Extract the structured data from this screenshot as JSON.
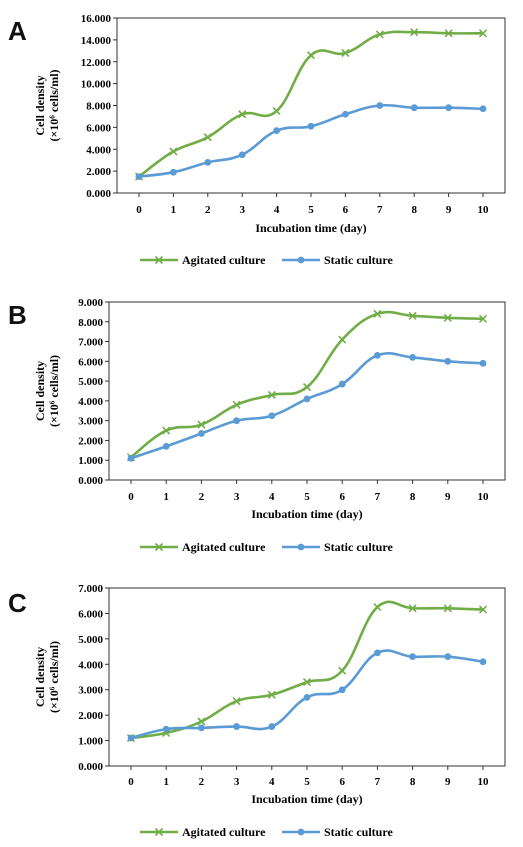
{
  "chart_data": [
    {
      "type": "line",
      "panel_label": "A",
      "x": [
        0,
        1,
        2,
        3,
        4,
        5,
        6,
        7,
        8,
        9,
        10
      ],
      "xticks": [
        "0",
        "1",
        "2",
        "3",
        "4",
        "5",
        "6",
        "7",
        "8",
        "9",
        "10"
      ],
      "xlabel": "Incubation time (day)",
      "ylabel_line1": "Cell density",
      "ylabel_line2": "(×10⁶ cells/ml)",
      "ylim": [
        0,
        16
      ],
      "yticks": [
        "0.000",
        "2.000",
        "4.000",
        "6.000",
        "8.000",
        "10.000",
        "12.000",
        "14.000",
        "16.000"
      ],
      "series": [
        {
          "name": "Agitated culture",
          "color": "#70ad47",
          "marker": "x",
          "values": [
            1.5,
            3.8,
            5.1,
            7.2,
            7.5,
            12.6,
            12.8,
            14.5,
            14.7,
            14.6,
            14.6
          ]
        },
        {
          "name": "Static culture",
          "color": "#5b9bd5",
          "marker": "circle",
          "values": [
            1.5,
            1.9,
            2.8,
            3.5,
            5.7,
            6.1,
            7.2,
            8.0,
            7.8,
            7.8,
            7.7
          ]
        }
      ],
      "legend_position": "bottom"
    },
    {
      "type": "line",
      "panel_label": "B",
      "x": [
        0,
        1,
        2,
        3,
        4,
        5,
        6,
        7,
        8,
        9,
        10
      ],
      "xticks": [
        "0",
        "1",
        "2",
        "3",
        "4",
        "5",
        "6",
        "7",
        "8",
        "9",
        "10"
      ],
      "xlabel": "Incubation time (day)",
      "ylabel_line1": "Cell density",
      "ylabel_line2": "(×10⁶ cells/ml)",
      "ylim": [
        0,
        9
      ],
      "yticks": [
        "0.000",
        "1.000",
        "2.000",
        "3.000",
        "4.000",
        "5.000",
        "6.000",
        "7.000",
        "8.000",
        "9.000"
      ],
      "series": [
        {
          "name": "Agitated culture",
          "color": "#70ad47",
          "marker": "x",
          "values": [
            1.15,
            2.5,
            2.8,
            3.8,
            4.3,
            4.7,
            7.1,
            8.4,
            8.3,
            8.2,
            8.15
          ]
        },
        {
          "name": "Static culture",
          "color": "#5b9bd5",
          "marker": "circle",
          "values": [
            1.1,
            1.7,
            2.35,
            3.0,
            3.25,
            4.1,
            4.85,
            6.3,
            6.2,
            6.0,
            5.9
          ]
        }
      ],
      "legend_position": "bottom"
    },
    {
      "type": "line",
      "panel_label": "C",
      "x": [
        0,
        1,
        2,
        3,
        4,
        5,
        6,
        7,
        8,
        9,
        10
      ],
      "xticks": [
        "0",
        "1",
        "2",
        "3",
        "4",
        "5",
        "6",
        "7",
        "8",
        "9",
        "10"
      ],
      "xlabel": "Incubation time (day)",
      "ylabel_line1": "Cell density",
      "ylabel_line2": "(×10⁶ cells/ml)",
      "ylim": [
        0,
        7
      ],
      "yticks": [
        "0.000",
        "1.000",
        "2.000",
        "3.000",
        "4.000",
        "5.000",
        "6.000",
        "7.000"
      ],
      "series": [
        {
          "name": "Agitated culture",
          "color": "#70ad47",
          "marker": "x",
          "values": [
            1.1,
            1.3,
            1.75,
            2.55,
            2.8,
            3.3,
            3.75,
            6.25,
            6.2,
            6.2,
            6.15
          ]
        },
        {
          "name": "Static culture",
          "color": "#5b9bd5",
          "marker": "circle",
          "values": [
            1.1,
            1.45,
            1.5,
            1.55,
            1.55,
            2.7,
            3.0,
            4.45,
            4.3,
            4.3,
            4.1
          ]
        }
      ],
      "legend_position": "bottom"
    }
  ]
}
